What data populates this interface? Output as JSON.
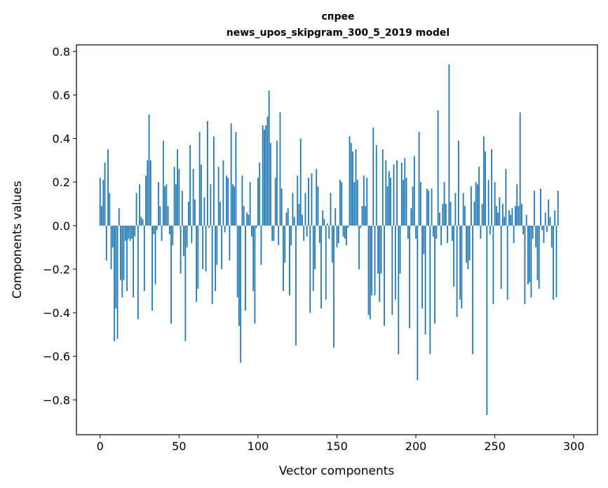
{
  "chart_data": {
    "type": "bar",
    "title_line1": "спрее",
    "title_line2": "news_upos_skipgram_300_5_2019 model",
    "xlabel": "Vector components",
    "ylabel": "Components values",
    "xlim": [
      -15,
      315
    ],
    "ylim": [
      -0.96,
      0.83
    ],
    "xticks": [
      0,
      50,
      100,
      150,
      200,
      250,
      300
    ],
    "xtick_labels": [
      "0",
      "50",
      "100",
      "150",
      "200",
      "250",
      "300"
    ],
    "yticks": [
      0.8,
      0.6,
      0.4,
      0.2,
      0.0,
      -0.2,
      -0.4,
      -0.6,
      -0.8
    ],
    "ytick_labels": [
      "0.8",
      "0.6",
      "0.4",
      "0.2",
      "0.0",
      "−0.2",
      "−0.4",
      "−0.6",
      "−0.8"
    ],
    "bar_color": "#1f77b4",
    "values": [
      0.22,
      0.09,
      0.21,
      0.29,
      -0.16,
      0.35,
      0.15,
      -0.2,
      -0.1,
      -0.53,
      -0.38,
      -0.52,
      0.08,
      -0.25,
      -0.33,
      -0.25,
      -0.07,
      -0.3,
      -0.06,
      -0.07,
      -0.06,
      -0.33,
      -0.05,
      0.15,
      -0.43,
      0.19,
      0.04,
      0.03,
      -0.3,
      0.23,
      0.3,
      0.51,
      0.3,
      -0.39,
      -0.04,
      -0.27,
      -0.02,
      0.2,
      0.09,
      -0.07,
      0.39,
      0.18,
      0.19,
      0.09,
      -0.04,
      -0.45,
      -0.09,
      0.27,
      0.19,
      0.35,
      0.26,
      -0.22,
      0.16,
      -0.14,
      -0.53,
      -0.1,
      0.11,
      0.37,
      -0.08,
      0.26,
      0.12,
      -0.35,
      -0.29,
      0.43,
      0.28,
      -0.2,
      0.13,
      -0.21,
      0.48,
      -0.01,
      0.19,
      -0.36,
      0.41,
      -0.3,
      -0.18,
      0.27,
      0.11,
      -0.2,
      0.3,
      -0.03,
      0.23,
      0.22,
      -0.16,
      0.47,
      0.19,
      0.18,
      0.43,
      -0.33,
      -0.46,
      -0.63,
      0.23,
      0.09,
      -0.39,
      0.06,
      0.05,
      0.2,
      -0.05,
      -0.3,
      -0.45,
      -0.01,
      0.22,
      0.29,
      -0.18,
      0.46,
      0.44,
      0.46,
      0.5,
      0.62,
      0.38,
      -0.07,
      -0.07,
      0.22,
      0.39,
      -0.09,
      0.52,
      0.17,
      -0.3,
      -0.17,
      0.06,
      0.08,
      -0.32,
      -0.09,
      0.15,
      0.04,
      -0.55,
      0.23,
      0.1,
      0.4,
      0.05,
      -0.07,
      0.15,
      -0.05,
      0.22,
      -0.4,
      0.24,
      -0.3,
      -0.2,
      0.26,
      0.18,
      -0.08,
      -0.38,
      0.07,
      0.03,
      -0.34,
      0.01,
      -0.06,
      0.15,
      -0.17,
      -0.56,
      0.08,
      -0.1,
      -0.08,
      0.21,
      0.2,
      -0.05,
      -0.06,
      -0.09,
      -0.01,
      0.41,
      0.38,
      0.34,
      0.2,
      0.35,
      0.21,
      -0.2,
      -0.01,
      0.09,
      0.23,
      0.09,
      0.22,
      -0.41,
      -0.43,
      -0.32,
      0.45,
      -0.32,
      0.37,
      -0.22,
      -0.35,
      -0.22,
      0.35,
      -0.46,
      0.3,
      0.18,
      0.25,
      0.22,
      -0.41,
      0.28,
      -0.34,
      0.3,
      -0.59,
      -0.22,
      0.29,
      0.21,
      0.31,
      0.22,
      -0.06,
      -0.47,
      0.08,
      0.18,
      0.32,
      -0.06,
      -0.71,
      0.43,
      0.2,
      -0.38,
      -0.13,
      -0.5,
      0.17,
      0.16,
      -0.59,
      0.17,
      -0.05,
      -0.45,
      -0.06,
      0.53,
      0.06,
      -0.09,
      0.1,
      0.2,
      0.1,
      -0.08,
      0.74,
      0.11,
      -0.07,
      -0.28,
      0.15,
      -0.42,
      0.39,
      -0.34,
      -0.38,
      0.15,
      0.09,
      -0.17,
      -0.2,
      -0.16,
      0.18,
      -0.59,
      0.11,
      0.2,
      0.19,
      0.27,
      -0.06,
      0.1,
      0.41,
      0.34,
      -0.87,
      0.21,
      -0.04,
      0.35,
      -0.36,
      0.2,
      0.09,
      0.06,
      0.13,
      -0.29,
      0.1,
      0.04,
      0.26,
      -0.34,
      0.07,
      0.05,
      0.08,
      -0.08,
      0.09,
      0.19,
      0.09,
      0.52,
      0.1,
      -0.04,
      -0.36,
      0.05,
      -0.27,
      -0.26,
      -0.33,
      -0.06,
      0.16,
      -0.1,
      -0.25,
      -0.29,
      0.17,
      -0.02,
      -0.08,
      0.06,
      -0.03,
      0.12,
      0.04,
      -0.1,
      -0.34,
      0.07,
      -0.33,
      0.16
    ]
  }
}
